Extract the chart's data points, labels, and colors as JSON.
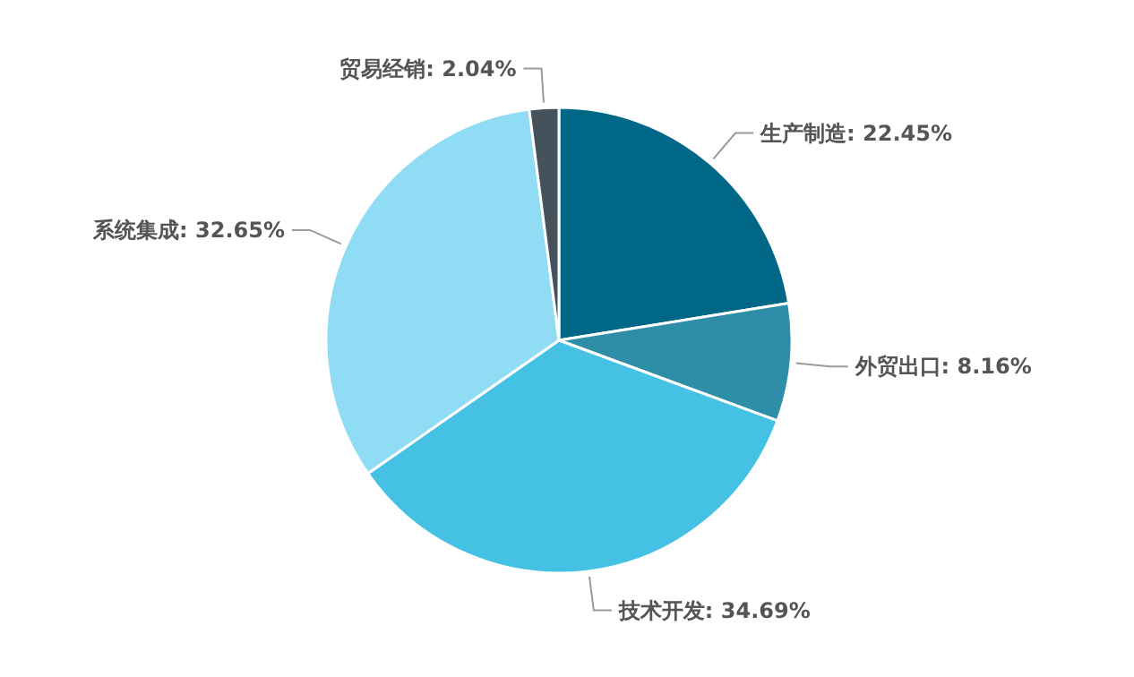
{
  "chart_data": {
    "type": "pie",
    "categories": [
      "生产制造",
      "外贸出口",
      "技术开发",
      "系统集成",
      "贸易经销"
    ],
    "values": [
      22.45,
      8.16,
      34.69,
      32.65,
      2.04
    ],
    "colors": [
      "#006787",
      "#2e8ea8",
      "#45c1e3",
      "#8fdcf4",
      "#45525c"
    ],
    "value_labels": [
      ": 22.45%",
      ": 8.16%",
      ": 34.69%",
      ": 32.65%",
      ": 2.04%"
    ]
  }
}
